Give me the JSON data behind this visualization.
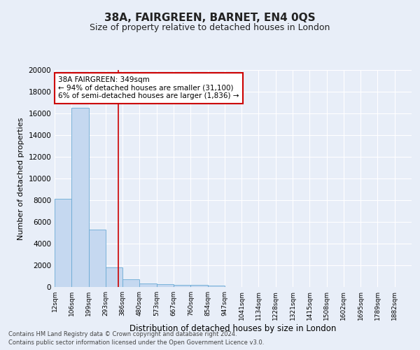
{
  "title": "38A, FAIRGREEN, BARNET, EN4 0QS",
  "subtitle": "Size of property relative to detached houses in London",
  "xlabel": "Distribution of detached houses by size in London",
  "ylabel": "Number of detached properties",
  "bin_labels": [
    "12sqm",
    "106sqm",
    "199sqm",
    "293sqm",
    "386sqm",
    "480sqm",
    "573sqm",
    "667sqm",
    "760sqm",
    "854sqm",
    "947sqm",
    "1041sqm",
    "1134sqm",
    "1228sqm",
    "1321sqm",
    "1415sqm",
    "1508sqm",
    "1602sqm",
    "1695sqm",
    "1789sqm",
    "1882sqm"
  ],
  "bar_heights": [
    8100,
    16500,
    5300,
    1800,
    700,
    350,
    250,
    200,
    175,
    150,
    0,
    0,
    0,
    0,
    0,
    0,
    0,
    0,
    0,
    0,
    0
  ],
  "bar_color": "#c5d8f0",
  "bar_edge_color": "#6aaad4",
  "annotation_line1": "38A FAIRGREEN: 349sqm",
  "annotation_line2": "← 94% of detached houses are smaller (31,100)",
  "annotation_line3": "6% of semi-detached houses are larger (1,836) →",
  "vline_color": "#cc0000",
  "vline_x": 3.75,
  "ylim": [
    0,
    20000
  ],
  "yticks": [
    0,
    2000,
    4000,
    6000,
    8000,
    10000,
    12000,
    14000,
    16000,
    18000,
    20000
  ],
  "footnote1": "Contains HM Land Registry data © Crown copyright and database right 2024.",
  "footnote2": "Contains public sector information licensed under the Open Government Licence v3.0.",
  "bg_color": "#e8eef8",
  "grid_color": "#ffffff",
  "title_fontsize": 11,
  "subtitle_fontsize": 9,
  "annotation_box_color": "#ffffff",
  "annotation_box_edge": "#cc0000"
}
